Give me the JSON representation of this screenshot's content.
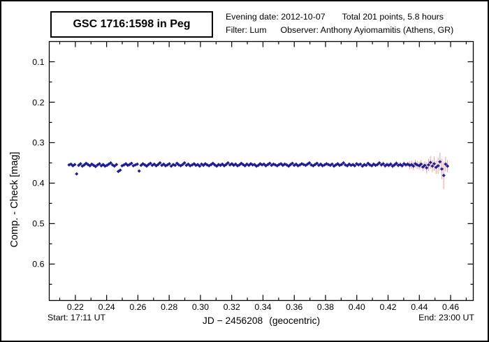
{
  "header": {
    "title": "GSC 1716:1598 in Peg",
    "info": {
      "evening_date": "Evening date: 2012-10-07",
      "total": "Total 201 points, 5.8 hours",
      "filter": "Filter: Lum",
      "observer": "Observer: Anthony Ayiomamitis (Athens, GR)"
    }
  },
  "footer": {
    "start": "Start: 17:11 UT",
    "xlabel_main": "JD − 2456208",
    "xlabel_suffix": "(geocentric)",
    "end": "End: 23:00 UT"
  },
  "colors": {
    "background": "#ffffff",
    "axis": "#000000",
    "point": "#1d1d96",
    "error_bar": "#f3a6a6"
  },
  "chart_data": {
    "type": "scatter",
    "title": "GSC 1716:1598 in Peg",
    "xlabel": "JD − 2456208 (geocentric)",
    "ylabel": "Comp. - Check [mag]",
    "legend": "none",
    "grid": false,
    "xlim": [
      0.2033,
      0.4745
    ],
    "ylim": [
      0.05,
      0.69
    ],
    "y_axis_inverted": true,
    "x_ticks": [
      {
        "v": 0.22,
        "label": "0.22"
      },
      {
        "v": 0.24,
        "label": "0.24"
      },
      {
        "v": 0.26,
        "label": "0.26"
      },
      {
        "v": 0.28,
        "label": "0.28"
      },
      {
        "v": 0.3,
        "label": "0.30"
      },
      {
        "v": 0.32,
        "label": "0.32"
      },
      {
        "v": 0.34,
        "label": "0.34"
      },
      {
        "v": 0.36,
        "label": "0.36"
      },
      {
        "v": 0.38,
        "label": "0.38"
      },
      {
        "v": 0.4,
        "label": "0.40"
      },
      {
        "v": 0.42,
        "label": "0.42"
      },
      {
        "v": 0.44,
        "label": "0.44"
      },
      {
        "v": 0.46,
        "label": "0.46"
      }
    ],
    "x_minor_ticks": [
      0.21,
      0.23,
      0.25,
      0.27,
      0.29,
      0.31,
      0.33,
      0.35,
      0.37,
      0.39,
      0.41,
      0.43,
      0.45,
      0.47
    ],
    "y_ticks": [
      {
        "v": 0.1,
        "label": "0.1"
      },
      {
        "v": 0.2,
        "label": "0.2"
      },
      {
        "v": 0.3,
        "label": "0.3"
      },
      {
        "v": 0.4,
        "label": "0.4"
      },
      {
        "v": 0.5,
        "label": "0.5"
      },
      {
        "v": 0.6,
        "label": "0.6"
      }
    ],
    "y_minor_ticks": [
      0.15,
      0.25,
      0.35,
      0.45,
      0.55,
      0.65
    ],
    "series": [
      {
        "name": "Comp. - Check",
        "marker": "diamond",
        "color": "#1d1d96",
        "error_color": "#f3a6a6",
        "x": [
          0.216,
          0.2172,
          0.2184,
          0.2196,
          0.2208,
          0.2221,
          0.2233,
          0.2245,
          0.2257,
          0.2269,
          0.2281,
          0.2293,
          0.2305,
          0.2317,
          0.2329,
          0.2342,
          0.2354,
          0.2366,
          0.2378,
          0.239,
          0.2402,
          0.2414,
          0.2426,
          0.2438,
          0.245,
          0.2463,
          0.2475,
          0.2487,
          0.2499,
          0.2511,
          0.2523,
          0.2535,
          0.2547,
          0.2559,
          0.2571,
          0.2584,
          0.2596,
          0.2608,
          0.262,
          0.2632,
          0.2644,
          0.2656,
          0.2668,
          0.268,
          0.2692,
          0.2705,
          0.2717,
          0.2729,
          0.2741,
          0.2753,
          0.2765,
          0.2777,
          0.2789,
          0.2801,
          0.2813,
          0.2826,
          0.2838,
          0.285,
          0.2862,
          0.2874,
          0.2886,
          0.2898,
          0.291,
          0.2922,
          0.2934,
          0.2947,
          0.2959,
          0.2971,
          0.2983,
          0.2995,
          0.3007,
          0.3019,
          0.3031,
          0.3043,
          0.3055,
          0.3068,
          0.308,
          0.3092,
          0.3104,
          0.3116,
          0.3128,
          0.314,
          0.3152,
          0.3164,
          0.3176,
          0.3189,
          0.3201,
          0.3213,
          0.3225,
          0.3237,
          0.3249,
          0.3261,
          0.3273,
          0.3285,
          0.3297,
          0.331,
          0.3322,
          0.3334,
          0.3346,
          0.3358,
          0.337,
          0.3382,
          0.3394,
          0.3406,
          0.3418,
          0.3431,
          0.3443,
          0.3455,
          0.3467,
          0.3479,
          0.3491,
          0.3503,
          0.3515,
          0.3527,
          0.3539,
          0.3552,
          0.3564,
          0.3576,
          0.3588,
          0.36,
          0.3612,
          0.3624,
          0.3636,
          0.3648,
          0.366,
          0.3673,
          0.3685,
          0.3697,
          0.3709,
          0.3721,
          0.3733,
          0.3745,
          0.3757,
          0.3769,
          0.3781,
          0.3794,
          0.3806,
          0.3818,
          0.383,
          0.3842,
          0.3854,
          0.3866,
          0.3878,
          0.389,
          0.3902,
          0.3915,
          0.3927,
          0.3939,
          0.3951,
          0.3963,
          0.3975,
          0.3987,
          0.3999,
          0.4011,
          0.4023,
          0.4036,
          0.4048,
          0.406,
          0.4072,
          0.4084,
          0.4096,
          0.4108,
          0.412,
          0.4132,
          0.4144,
          0.4157,
          0.4169,
          0.4181,
          0.4193,
          0.4205,
          0.4217,
          0.4229,
          0.4241,
          0.4253,
          0.4265,
          0.4278,
          0.429,
          0.4302,
          0.4314,
          0.4326,
          0.4338,
          0.435,
          0.4362,
          0.4374,
          0.4386,
          0.4399,
          0.4411,
          0.4423,
          0.4435,
          0.4447,
          0.4459,
          0.4471,
          0.4483,
          0.4495,
          0.4507,
          0.452,
          0.4532,
          0.4544,
          0.4556,
          0.4568,
          0.458
        ],
        "y": [
          0.355,
          0.353,
          0.357,
          0.354,
          0.377,
          0.356,
          0.352,
          0.358,
          0.355,
          0.351,
          0.354,
          0.357,
          0.353,
          0.356,
          0.359,
          0.355,
          0.352,
          0.357,
          0.354,
          0.358,
          0.356,
          0.353,
          0.35,
          0.355,
          0.358,
          0.354,
          0.371,
          0.368,
          0.357,
          0.355,
          0.352,
          0.356,
          0.354,
          0.351,
          0.357,
          0.355,
          0.353,
          0.37,
          0.356,
          0.352,
          0.355,
          0.358,
          0.354,
          0.351,
          0.356,
          0.353,
          0.357,
          0.354,
          0.35,
          0.356,
          0.353,
          0.357,
          0.355,
          0.352,
          0.358,
          0.354,
          0.356,
          0.351,
          0.355,
          0.357,
          0.354,
          0.35,
          0.356,
          0.353,
          0.357,
          0.355,
          0.352,
          0.356,
          0.354,
          0.358,
          0.353,
          0.356,
          0.352,
          0.355,
          0.357,
          0.354,
          0.351,
          0.355,
          0.358,
          0.354,
          0.356,
          0.353,
          0.357,
          0.354,
          0.35,
          0.355,
          0.352,
          0.356,
          0.353,
          0.357,
          0.355,
          0.351,
          0.354,
          0.357,
          0.353,
          0.356,
          0.352,
          0.355,
          0.354,
          0.358,
          0.356,
          0.352,
          0.355,
          0.353,
          0.357,
          0.354,
          0.351,
          0.356,
          0.353,
          0.355,
          0.357,
          0.354,
          0.352,
          0.356,
          0.353,
          0.355,
          0.358,
          0.354,
          0.351,
          0.356,
          0.353,
          0.357,
          0.355,
          0.352,
          0.354,
          0.356,
          0.353,
          0.35,
          0.355,
          0.357,
          0.354,
          0.351,
          0.356,
          0.353,
          0.357,
          0.355,
          0.352,
          0.354,
          0.356,
          0.353,
          0.358,
          0.355,
          0.352,
          0.356,
          0.354,
          0.35,
          0.355,
          0.357,
          0.353,
          0.356,
          0.354,
          0.357,
          0.352,
          0.355,
          0.353,
          0.358,
          0.354,
          0.356,
          0.351,
          0.355,
          0.357,
          0.353,
          0.356,
          0.354,
          0.35,
          0.355,
          0.352,
          0.357,
          0.354,
          0.356,
          0.353,
          0.358,
          0.355,
          0.351,
          0.356,
          0.354,
          0.357,
          0.352,
          0.355,
          0.353,
          0.356,
          0.354,
          0.358,
          0.352,
          0.355,
          0.357,
          0.353,
          0.36,
          0.356,
          0.362,
          0.355,
          0.349,
          0.358,
          0.352,
          0.361,
          0.357,
          0.347,
          0.365,
          0.381,
          0.353,
          0.358
        ],
        "err_runs": [
          [
            165,
            0.002
          ],
          [
            15,
            0.006
          ],
          [
            9,
            0.01
          ],
          [
            1,
            0.014
          ],
          [
            1,
            0.015
          ],
          [
            1,
            0.016
          ],
          [
            1,
            0.015
          ],
          [
            1,
            0.018
          ],
          [
            1,
            0.016
          ],
          [
            1,
            0.02
          ],
          [
            1,
            0.022
          ],
          [
            1,
            0.025
          ],
          [
            1,
            0.034
          ],
          [
            1,
            0.018
          ],
          [
            1,
            0.015
          ]
        ]
      }
    ]
  }
}
